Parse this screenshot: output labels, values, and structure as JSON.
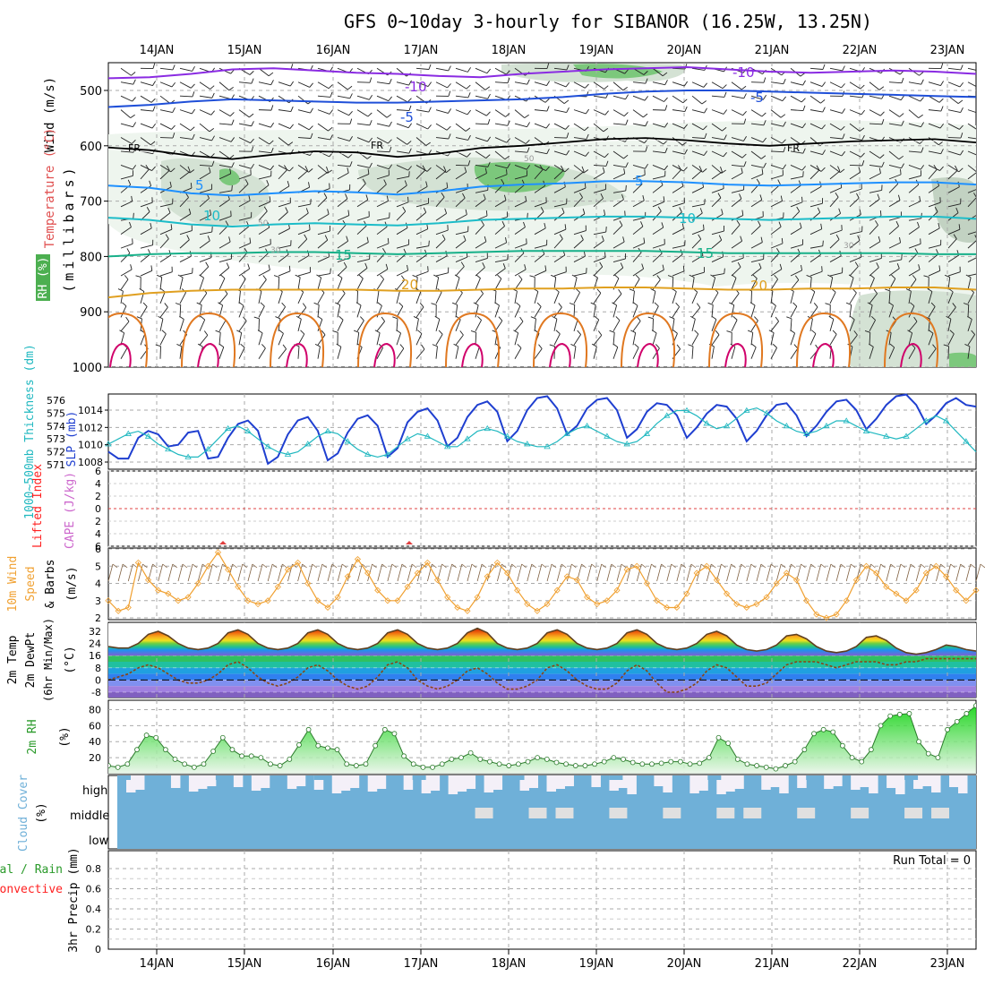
{
  "title": "GFS 0~10day 3-hourly for SIBANOR (16.25W, 13.25N)",
  "days": [
    "14JAN",
    "15JAN",
    "16JAN",
    "17JAN",
    "18JAN",
    "19JAN",
    "20JAN",
    "21JAN",
    "22JAN",
    "23JAN"
  ],
  "colors": {
    "temp_cold1": "#8a2be2",
    "temp_cold2": "#1f4fd8",
    "freezing": "#000000",
    "temp_warm1": "#1e90ff",
    "temp_warm2": "#1cbcc8",
    "temp_warm3": "#17b089",
    "temp_warm4": "#e0a020",
    "temp_hot": "#e07820",
    "rh_fill": "#4caf50",
    "slp": "#1f3fd0",
    "thickness": "#20b8c0",
    "wind10m": "#f0a030",
    "lifted_index": "#ff0000",
    "cape": "#cc66cc",
    "rh2m": "#2a9a2a",
    "cloud": "#6fb0d8",
    "dewpt": "#8b4513"
  },
  "chart_data": [
    {
      "panel": "upper-air",
      "type": "contour",
      "ylabel_parts": [
        "Wind (m/s)",
        "Temperature (°C)",
        "RH (%)",
        "(millibars)"
      ],
      "yticks": [
        500,
        600,
        700,
        800,
        900,
        1000
      ],
      "contour_labels": [
        {
          "text": "-10",
          "series": "temp_cold1"
        },
        {
          "text": "-5",
          "series": "temp_cold2"
        },
        {
          "text": "FR",
          "series": "freezing"
        },
        {
          "text": "5",
          "series": "temp_warm1"
        },
        {
          "text": "10",
          "series": "temp_warm2"
        },
        {
          "text": "15",
          "series": "temp_warm3"
        },
        {
          "text": "20",
          "series": "temp_warm4"
        },
        {
          "text": "30",
          "series": "rh"
        },
        {
          "text": "50",
          "series": "rh"
        }
      ],
      "isotherm_levels_mb": {
        "m10": [
          478,
          476,
          470,
          462,
          460,
          464,
          468,
          470,
          474,
          476,
          470,
          466,
          462,
          460,
          458,
          462,
          466,
          468,
          466,
          464,
          466,
          470
        ],
        "m5": [
          530,
          526,
          520,
          516,
          518,
          520,
          522,
          522,
          520,
          518,
          516,
          512,
          506,
          502,
          500,
          500,
          502,
          504,
          506,
          508,
          510,
          512
        ],
        "fr": [
          603,
          608,
          618,
          624,
          616,
          610,
          612,
          620,
          614,
          604,
          600,
          594,
          588,
          586,
          590,
          596,
          600,
          596,
          592,
          590,
          588,
          594
        ],
        "p5": [
          672,
          676,
          686,
          690,
          686,
          682,
          684,
          688,
          682,
          674,
          670,
          668,
          664,
          664,
          666,
          670,
          672,
          670,
          668,
          666,
          666,
          670
        ],
        "p10": [
          730,
          734,
          742,
          746,
          742,
          740,
          742,
          744,
          740,
          734,
          732,
          730,
          728,
          728,
          730,
          732,
          734,
          732,
          730,
          728,
          728,
          732
        ],
        "p15": [
          800,
          796,
          794,
          794,
          792,
          792,
          794,
          796,
          794,
          792,
          790,
          790,
          790,
          790,
          792,
          794,
          794,
          794,
          794,
          794,
          796,
          796
        ],
        "p20": [
          874,
          866,
          862,
          860,
          860,
          860,
          860,
          862,
          862,
          860,
          858,
          858,
          856,
          856,
          858,
          860,
          860,
          858,
          858,
          856,
          856,
          860
        ]
      }
    },
    {
      "panel": "slp-thickness",
      "type": "line",
      "ylabel_left": "1000~500mb Thickness (dm)",
      "ylabel_right": "SLP (mb)",
      "yticks_thickness": [
        571,
        572,
        573,
        574,
        575,
        576
      ],
      "yticks_slp": [
        1008,
        1010,
        1012,
        1014
      ],
      "series": [
        {
          "name": "SLP",
          "values": [
            1009.2,
            1008.4,
            1008.4,
            1010.8,
            1011.6,
            1011.2,
            1009.8,
            1010.0,
            1011.4,
            1011.6,
            1008.4,
            1008.6,
            1010.8,
            1012.4,
            1012.8,
            1011.6,
            1007.8,
            1008.6,
            1011.2,
            1012.8,
            1013.2,
            1011.6,
            1008.2,
            1009.0,
            1011.4,
            1013.0,
            1013.4,
            1012.2,
            1008.6,
            1009.6,
            1012.6,
            1013.8,
            1014.2,
            1012.8,
            1009.8,
            1010.8,
            1013.2,
            1014.6,
            1015.0,
            1013.8,
            1010.4,
            1011.6,
            1014.0,
            1015.4,
            1015.6,
            1014.2,
            1011.2,
            1012.2,
            1014.2,
            1015.2,
            1015.4,
            1014.0,
            1010.8,
            1011.8,
            1013.8,
            1014.8,
            1014.6,
            1013.4,
            1010.8,
            1012.0,
            1013.6,
            1014.6,
            1014.4,
            1013.0,
            1010.4,
            1011.6,
            1013.4,
            1014.6,
            1014.8,
            1013.4,
            1011.0,
            1012.2,
            1013.8,
            1015.0,
            1015.2,
            1014.0,
            1011.8,
            1013.0,
            1014.6,
            1015.6,
            1015.8,
            1014.6,
            1012.4,
            1013.4,
            1014.8,
            1015.4,
            1014.6,
            1014.4
          ]
        },
        {
          "name": "Thickness",
          "values": [
            572.6,
            573.0,
            573.4,
            573.6,
            573.2,
            572.6,
            572.2,
            571.8,
            571.6,
            571.6,
            572.2,
            573.0,
            573.8,
            574.0,
            573.6,
            573.0,
            572.4,
            572.0,
            571.8,
            572.0,
            572.6,
            573.2,
            573.6,
            573.4,
            572.8,
            572.2,
            571.8,
            571.6,
            571.8,
            572.4,
            573.0,
            573.4,
            573.2,
            572.8,
            572.4,
            572.4,
            573.0,
            573.6,
            573.8,
            573.6,
            573.2,
            572.8,
            572.6,
            572.4,
            572.4,
            572.8,
            573.4,
            573.8,
            574.0,
            573.6,
            573.2,
            572.8,
            572.6,
            572.8,
            573.4,
            574.2,
            574.8,
            575.2,
            575.2,
            574.8,
            574.2,
            573.8,
            574.0,
            574.6,
            575.2,
            575.4,
            575.0,
            574.4,
            574.0,
            573.6,
            573.4,
            573.6,
            574.0,
            574.4,
            574.4,
            574.0,
            573.6,
            573.4,
            573.2,
            573.0,
            573.2,
            573.8,
            574.4,
            574.8,
            574.4,
            573.6,
            572.8,
            572.0
          ]
        }
      ]
    },
    {
      "panel": "lifted-index-cape",
      "type": "line",
      "ylabel_left": "Lifted Index",
      "ylabel_right": "CAPE (J/kg)",
      "yticks": [
        -6,
        -4,
        -2,
        0,
        2,
        4,
        6
      ]
    },
    {
      "panel": "wind10m",
      "type": "line",
      "ylabel_parts": [
        "10m Wind",
        "Speed",
        "& Barbs",
        "(m/s)"
      ],
      "yticks": [
        2,
        3,
        4,
        5,
        6
      ],
      "values": [
        3.0,
        2.4,
        2.6,
        5.2,
        4.2,
        3.6,
        3.4,
        3.0,
        3.2,
        4.0,
        5.0,
        5.8,
        4.8,
        3.8,
        3.0,
        2.8,
        3.0,
        3.8,
        4.8,
        5.2,
        4.0,
        3.0,
        2.6,
        3.2,
        4.4,
        5.4,
        4.6,
        3.6,
        3.0,
        3.0,
        3.8,
        4.6,
        5.2,
        4.2,
        3.2,
        2.6,
        2.4,
        3.2,
        4.4,
        5.2,
        4.6,
        3.6,
        2.8,
        2.4,
        2.8,
        3.6,
        4.4,
        4.2,
        3.2,
        2.8,
        3.0,
        3.6,
        4.8,
        5.0,
        4.0,
        3.0,
        2.6,
        2.6,
        3.4,
        4.6,
        5.0,
        4.2,
        3.4,
        2.8,
        2.6,
        2.8,
        3.2,
        4.0,
        4.6,
        4.2,
        3.0,
        2.2,
        2.0,
        2.2,
        3.0,
        4.2,
        5.0,
        4.6,
        3.8,
        3.4,
        3.0,
        3.6,
        4.6,
        5.0,
        4.4,
        3.6,
        3.0,
        3.6
      ]
    },
    {
      "panel": "temp2m",
      "type": "area",
      "ylabel_parts": [
        "2m Temp",
        "2m DewPt",
        "(6hr Min/Max)",
        "(°C)"
      ],
      "yticks": [
        -8,
        0,
        8,
        16,
        24,
        32
      ],
      "temp": [
        22,
        21,
        21,
        24,
        30,
        32,
        29,
        24,
        21,
        20,
        21,
        24,
        31,
        33,
        30,
        24,
        21,
        20,
        21,
        24,
        31,
        33,
        30,
        24,
        21,
        20,
        21,
        24,
        31,
        33,
        30,
        24,
        21,
        20,
        21,
        24,
        31,
        34,
        31,
        24,
        21,
        20,
        21,
        24,
        31,
        33,
        30,
        24,
        21,
        20,
        21,
        24,
        31,
        33,
        30,
        24,
        21,
        20,
        21,
        24,
        30,
        32,
        29,
        23,
        20,
        19,
        20,
        23,
        29,
        30,
        27,
        22,
        19,
        18,
        19,
        22,
        28,
        29,
        26,
        21,
        18,
        17,
        18,
        20,
        23,
        22,
        20,
        19
      ],
      "dewpt": [
        0,
        2,
        4,
        8,
        10,
        8,
        4,
        0,
        -2,
        -2,
        0,
        4,
        10,
        12,
        8,
        2,
        -2,
        -4,
        -2,
        2,
        8,
        10,
        6,
        0,
        -4,
        -6,
        -4,
        2,
        10,
        12,
        8,
        0,
        -4,
        -6,
        -4,
        0,
        6,
        8,
        4,
        -2,
        -6,
        -6,
        -4,
        0,
        8,
        10,
        6,
        0,
        -4,
        -6,
        -6,
        -2,
        6,
        10,
        6,
        -2,
        -8,
        -8,
        -6,
        -2,
        6,
        10,
        8,
        2,
        -4,
        -4,
        -2,
        4,
        10,
        12,
        12,
        12,
        10,
        8,
        10,
        12,
        12,
        12,
        10,
        10,
        12,
        12,
        14,
        14,
        14,
        14,
        14,
        14
      ]
    },
    {
      "panel": "rh2m",
      "type": "area",
      "ylabel_parts": [
        "2m RH",
        "(%)"
      ],
      "yticks": [
        20,
        40,
        60,
        80
      ],
      "values": [
        10,
        8,
        12,
        30,
        48,
        45,
        30,
        18,
        12,
        8,
        12,
        28,
        45,
        30,
        22,
        22,
        20,
        12,
        10,
        18,
        36,
        55,
        35,
        32,
        30,
        12,
        10,
        12,
        35,
        55,
        50,
        22,
        12,
        8,
        8,
        12,
        18,
        20,
        26,
        18,
        15,
        12,
        10,
        12,
        15,
        20,
        18,
        14,
        12,
        10,
        10,
        12,
        15,
        20,
        18,
        14,
        12,
        12,
        13,
        15,
        15,
        12,
        13,
        20,
        45,
        38,
        18,
        12,
        10,
        8,
        6,
        10,
        15,
        30,
        50,
        55,
        52,
        35,
        20,
        15,
        30,
        60,
        72,
        74,
        75,
        40,
        25,
        20,
        55,
        65,
        75,
        85
      ]
    },
    {
      "panel": "cloud-cover",
      "type": "bar",
      "ylabel_parts": [
        "Cloud Cover",
        "(%)"
      ],
      "level_labels": [
        "high",
        "middle",
        "low"
      ]
    },
    {
      "panel": "precip",
      "type": "bar",
      "ylabel_parts": [
        "3hr Precip (mm)",
        "Total / Rain",
        "Convective"
      ],
      "yticks": [
        0,
        0.2,
        0.4,
        0.6,
        0.8
      ],
      "run_total_label": "Run Total = 0",
      "values": []
    }
  ]
}
